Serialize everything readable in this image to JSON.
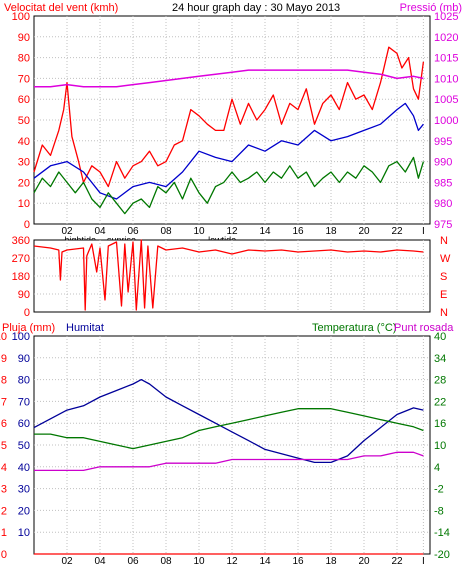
{
  "page_title": "24 hour graph day : 30 Mayo 2013",
  "colors": {
    "background": "#ffffff",
    "frame": "#000000",
    "grid": "#c0c0c0",
    "wind": "#ff0000",
    "gust": "#0000cc",
    "pressure": "#dd00dd",
    "green": "#007700",
    "humidity": "#000099",
    "dewpoint": "#cc00cc",
    "rain": "#ff0000"
  },
  "chart_data": [
    {
      "type": "line",
      "name": "wind-pressure",
      "title": "24 hour graph day : 30 Mayo 2013",
      "ylabel_left": "Velocitat del vent (kmh)",
      "ylabel_right": "Pressió (mb)",
      "ylim_left": [
        0,
        100
      ],
      "ylim_right": [
        975,
        1025
      ],
      "yticks_left": [
        "100",
        "90",
        "80",
        "70",
        "60",
        "50",
        "40",
        "30",
        "20",
        "10",
        "0"
      ],
      "yticks_right": [
        "1025",
        "1020",
        "1015",
        "1010",
        "1005",
        "1000",
        "995",
        "990",
        "985",
        "980",
        "975"
      ],
      "xlim": [
        0,
        24
      ],
      "x_ticks": [
        {
          "x": 2,
          "label": "02"
        },
        {
          "x": 4,
          "label": "04"
        },
        {
          "x": 6,
          "label": "06"
        },
        {
          "x": 8,
          "label": "08"
        },
        {
          "x": 10,
          "label": "10"
        },
        {
          "x": 12,
          "label": "12"
        },
        {
          "x": 14,
          "label": "14"
        },
        {
          "x": 16,
          "label": "16"
        },
        {
          "x": 18,
          "label": "18"
        },
        {
          "x": 20,
          "label": "20"
        },
        {
          "x": 22,
          "label": "22"
        },
        {
          "x": 23.6,
          "label": "I"
        }
      ],
      "markers": [
        {
          "x": 2.8,
          "label": "hightide"
        },
        {
          "x": 5.3,
          "label": "sunrise"
        },
        {
          "x": 11.4,
          "label": "lowtide"
        }
      ],
      "series": [
        {
          "color_key": "wind",
          "axis": "left",
          "x": [
            0,
            0.5,
            1,
            1.5,
            1.8,
            2,
            2.3,
            2.7,
            3,
            3.5,
            4,
            4.5,
            5,
            5.5,
            6,
            6.5,
            7,
            7.5,
            8,
            8.5,
            9,
            9.5,
            10,
            10.5,
            11,
            11.5,
            12,
            12.5,
            13,
            13.5,
            14,
            14.5,
            15,
            15.5,
            16,
            16.5,
            17,
            17.5,
            18,
            18.5,
            19,
            19.5,
            20,
            20.5,
            21,
            21.5,
            22,
            22.3,
            22.7,
            23,
            23.3,
            23.6
          ],
          "y": [
            25,
            38,
            33,
            45,
            55,
            68,
            42,
            30,
            20,
            28,
            25,
            18,
            30,
            22,
            28,
            30,
            35,
            28,
            30,
            38,
            40,
            55,
            52,
            48,
            45,
            45,
            60,
            48,
            58,
            50,
            55,
            62,
            48,
            58,
            55,
            65,
            48,
            58,
            62,
            55,
            68,
            60,
            62,
            55,
            68,
            85,
            82,
            75,
            80,
            65,
            60,
            78
          ]
        },
        {
          "color_key": "gust",
          "axis": "left",
          "x": [
            0,
            1,
            2,
            3,
            4,
            5,
            6,
            7,
            8,
            9,
            10,
            11,
            12,
            13,
            14,
            15,
            16,
            17,
            18,
            19,
            20,
            21,
            22,
            22.5,
            23,
            23.3,
            23.6
          ],
          "y": [
            22,
            28,
            30,
            25,
            15,
            12,
            18,
            20,
            18,
            25,
            35,
            32,
            30,
            38,
            35,
            40,
            38,
            45,
            40,
            42,
            45,
            48,
            55,
            58,
            52,
            45,
            48
          ]
        },
        {
          "color_key": "green",
          "axis": "left",
          "x": [
            0,
            0.5,
            1,
            1.5,
            2,
            2.5,
            3,
            3.5,
            4,
            4.5,
            5,
            5.5,
            6,
            6.5,
            7,
            7.5,
            8,
            8.5,
            9,
            9.5,
            10,
            10.5,
            11,
            11.5,
            12,
            12.5,
            13,
            13.5,
            14,
            14.5,
            15,
            15.5,
            16,
            16.5,
            17,
            17.5,
            18,
            18.5,
            19,
            19.5,
            20,
            20.5,
            21,
            21.5,
            22,
            22.5,
            23,
            23.3,
            23.6
          ],
          "y": [
            15,
            22,
            18,
            25,
            20,
            15,
            20,
            12,
            8,
            15,
            10,
            5,
            10,
            12,
            8,
            18,
            15,
            20,
            12,
            22,
            15,
            10,
            18,
            20,
            25,
            20,
            22,
            25,
            20,
            25,
            22,
            28,
            22,
            25,
            18,
            22,
            25,
            20,
            25,
            22,
            28,
            25,
            20,
            28,
            30,
            25,
            32,
            22,
            30
          ]
        },
        {
          "color_key": "pressure",
          "axis": "right",
          "x": [
            0,
            1,
            2,
            3,
            4,
            5,
            6,
            7,
            8,
            9,
            10,
            11,
            12,
            13,
            14,
            15,
            16,
            17,
            18,
            19,
            20,
            21,
            22,
            23,
            23.6
          ],
          "y": [
            1008,
            1008,
            1008.5,
            1008,
            1008,
            1008,
            1008.5,
            1009,
            1009.5,
            1010,
            1010.5,
            1011,
            1011.5,
            1012,
            1012,
            1012,
            1012,
            1012,
            1012,
            1012,
            1011.5,
            1011,
            1010,
            1010.5,
            1010
          ]
        }
      ]
    },
    {
      "type": "line",
      "name": "wind-direction",
      "ylim": [
        0,
        360
      ],
      "yticks": [
        "360",
        "270",
        "180",
        "90",
        "0"
      ],
      "compass_labels": [
        "N",
        "W",
        "S",
        "E",
        "N"
      ],
      "series": [
        {
          "color_key": "wind",
          "x": [
            0,
            1,
            1.5,
            1.6,
            1.7,
            2,
            3,
            3.1,
            3.2,
            3.3,
            3.5,
            3.8,
            4,
            4.3,
            4.5,
            5,
            5.3,
            5.5,
            5.7,
            6,
            6.2,
            6.5,
            6.7,
            6.9,
            7.2,
            7.5,
            8,
            9,
            10,
            11,
            12,
            13,
            14,
            15,
            16,
            17,
            18,
            19,
            20,
            21,
            22,
            23,
            23.6
          ],
          "y": [
            330,
            320,
            310,
            160,
            300,
            310,
            320,
            10,
            280,
            300,
            340,
            200,
            320,
            60,
            330,
            350,
            30,
            340,
            100,
            350,
            10,
            360,
            20,
            330,
            20,
            330,
            310,
            320,
            300,
            310,
            290,
            310,
            305,
            310,
            300,
            305,
            310,
            300,
            305,
            300,
            310,
            305,
            300
          ]
        }
      ]
    },
    {
      "type": "line",
      "name": "humidity-temperature",
      "ylabel_left_1": "Pluja (mm)",
      "ylabel_left_2": "Humitat",
      "ylabel_right_1": "Temperatura (°C)",
      "ylabel_right_2": "Punt rosada",
      "ylim_left": [
        0,
        100
      ],
      "ylim_right": [
        -20,
        40
      ],
      "yticks_left_outer": [
        "10",
        "9",
        "8",
        "7",
        "6",
        "5",
        "4",
        "3",
        "2",
        "1",
        "0"
      ],
      "yticks_left_inner": [
        "100",
        "90",
        "80",
        "70",
        "60",
        "50",
        "40",
        "30",
        "20",
        "10"
      ],
      "yticks_right": [
        "40",
        "34",
        "28",
        "22",
        "16",
        "10",
        "4",
        "-2",
        "-8",
        "-14",
        "-20"
      ],
      "series": [
        {
          "color_key": "humidity",
          "axis": "left",
          "x": [
            0,
            1,
            2,
            3,
            4,
            5,
            6,
            6.5,
            7,
            8,
            9,
            10,
            11,
            12,
            13,
            14,
            15,
            16,
            17,
            18,
            19,
            20,
            21,
            22,
            23,
            23.6
          ],
          "y": [
            58,
            62,
            66,
            68,
            72,
            75,
            78,
            80,
            78,
            72,
            68,
            64,
            60,
            56,
            52,
            48,
            46,
            44,
            42,
            42,
            45,
            52,
            58,
            64,
            67,
            66
          ]
        },
        {
          "color_key": "green",
          "axis": "right",
          "x": [
            0,
            1,
            2,
            3,
            4,
            5,
            6,
            7,
            8,
            9,
            10,
            11,
            12,
            13,
            14,
            15,
            16,
            17,
            18,
            19,
            20,
            21,
            22,
            23,
            23.6
          ],
          "y": [
            13,
            13,
            12,
            12,
            11,
            10,
            9,
            10,
            11,
            12,
            14,
            15,
            16,
            17,
            18,
            19,
            20,
            20,
            20,
            19,
            18,
            17,
            16,
            15,
            14
          ]
        },
        {
          "color_key": "dewpoint",
          "axis": "right",
          "x": [
            0,
            1,
            2,
            3,
            4,
            5,
            6,
            7,
            8,
            9,
            10,
            11,
            12,
            13,
            14,
            15,
            16,
            17,
            18,
            19,
            20,
            21,
            22,
            23,
            23.6
          ],
          "y": [
            3,
            3,
            3,
            3,
            4,
            4,
            4,
            4,
            5,
            5,
            5,
            5,
            6,
            6,
            6,
            6,
            6,
            6,
            6,
            6,
            7,
            7,
            8,
            8,
            7
          ]
        },
        {
          "color_key": "rain",
          "axis": "left",
          "x": [
            0,
            23.6
          ],
          "y": [
            0,
            0
          ]
        }
      ]
    }
  ]
}
